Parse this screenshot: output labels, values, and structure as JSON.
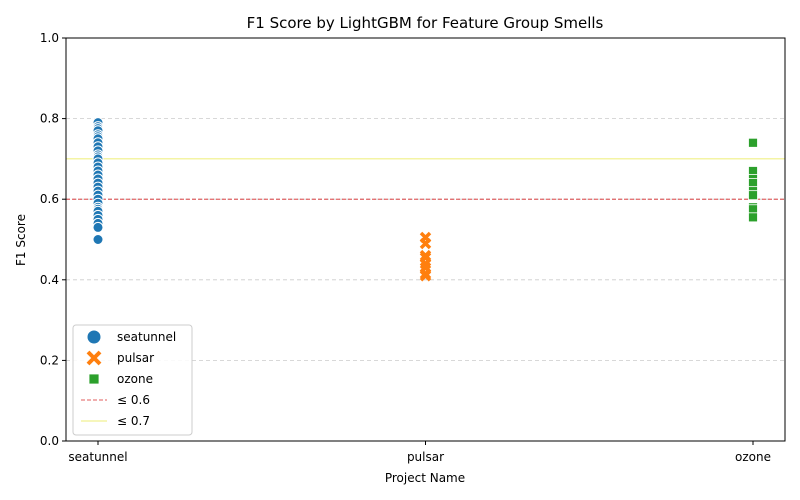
{
  "chart_data": {
    "type": "scatter",
    "title": "F1 Score by LightGBM for Feature Group Smells",
    "xlabel": "Project Name",
    "ylabel": "F1 Score",
    "categories": [
      "seatunnel",
      "pulsar",
      "ozone"
    ],
    "ylim": [
      0,
      1
    ],
    "yticks": [
      "0.0",
      "0.2",
      "0.4",
      "0.6",
      "0.8",
      "1.0"
    ],
    "grid": "y-dashed",
    "legend_position": "lower-left",
    "series": [
      {
        "name": "seatunnel",
        "marker": "circle",
        "color": "#1f77b4",
        "x": "seatunnel",
        "values": [
          0.79,
          0.78,
          0.775,
          0.77,
          0.76,
          0.755,
          0.75,
          0.74,
          0.73,
          0.72,
          0.71,
          0.705,
          0.7,
          0.69,
          0.68,
          0.67,
          0.66,
          0.65,
          0.64,
          0.63,
          0.62,
          0.61,
          0.6,
          0.59,
          0.58,
          0.575,
          0.57,
          0.56,
          0.55,
          0.54,
          0.53,
          0.5
        ]
      },
      {
        "name": "pulsar",
        "marker": "x",
        "color": "#ff7f0e",
        "x": "pulsar",
        "values": [
          0.505,
          0.49,
          0.46,
          0.455,
          0.44,
          0.43,
          0.415,
          0.41
        ]
      },
      {
        "name": "ozone",
        "marker": "square",
        "color": "#2ca02c",
        "x": "ozone",
        "values": [
          0.74,
          0.67,
          0.65,
          0.64,
          0.62,
          0.61,
          0.58,
          0.575,
          0.555
        ]
      }
    ],
    "reference_lines": [
      {
        "name": "≤ 0.6",
        "y": 0.6,
        "color": "#d62728",
        "style": "dashed"
      },
      {
        "name": "≤ 0.7",
        "y": 0.7,
        "color": "#e8e84a",
        "style": "solid"
      }
    ]
  }
}
